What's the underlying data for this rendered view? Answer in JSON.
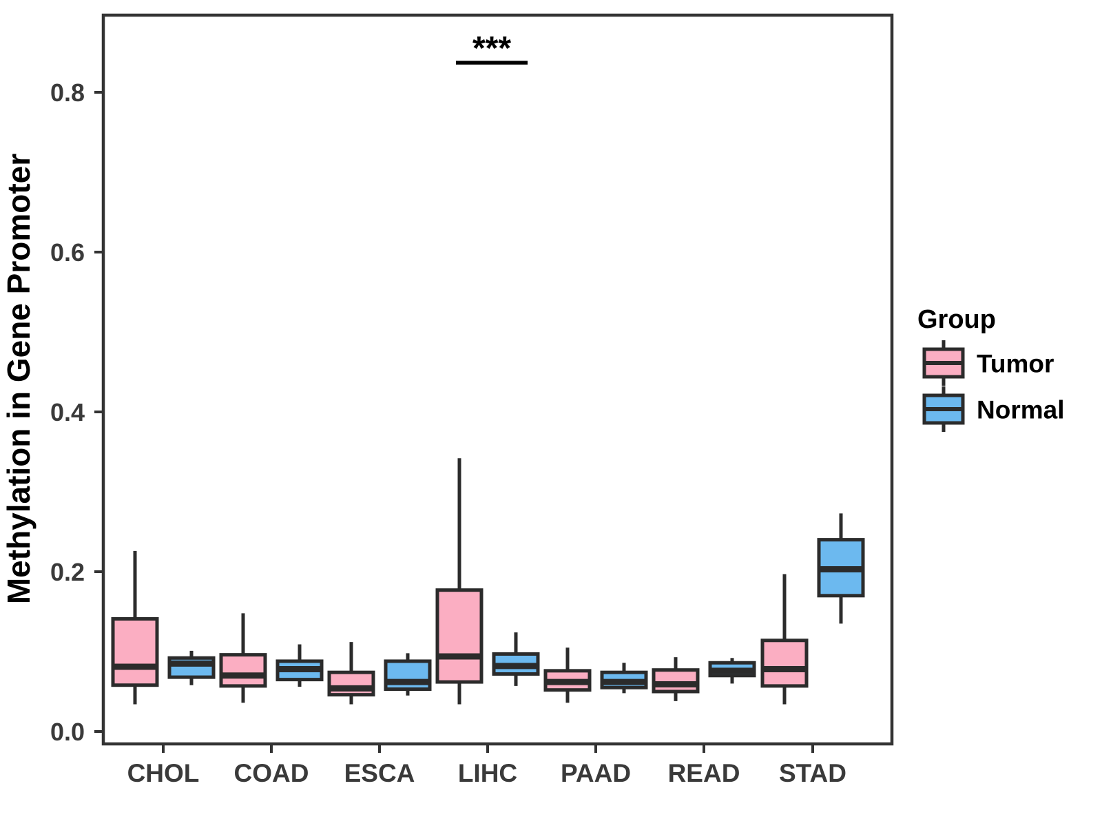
{
  "figure": {
    "background_color": "#ffffff",
    "panel_border_color": "#333333",
    "axis_text_color": "#3a3a3a",
    "y_axis": {
      "title": "Methylation in Gene Promoter",
      "tick_labels": [
        "0.0",
        "0.2",
        "0.4",
        "0.6",
        "0.8"
      ],
      "tick_values": [
        0.0,
        0.2,
        0.4,
        0.6,
        0.8
      ]
    },
    "x_axis": {
      "categories": [
        "CHOL",
        "COAD",
        "ESCA",
        "LIHC",
        "PAAD",
        "READ",
        "STAD"
      ]
    },
    "legend": {
      "title": "Group",
      "entries": [
        {
          "label": "Tumor",
          "fill": "#FBAEC2"
        },
        {
          "label": "Normal",
          "fill": "#6CB9EF"
        }
      ]
    }
  },
  "chart_data": {
    "type": "boxplot",
    "title": "",
    "xlabel": "",
    "ylabel": "Methylation in Gene Promoter",
    "ylim": [
      -0.016,
      0.9
    ],
    "grid": false,
    "legend_position": "right",
    "categories": [
      "CHOL",
      "COAD",
      "ESCA",
      "LIHC",
      "PAAD",
      "READ",
      "STAD"
    ],
    "box_outline_color": "#2b2b2b",
    "series": [
      {
        "name": "Tumor",
        "fill": "#FBAEC2",
        "boxes": [
          {
            "category": "CHOL",
            "whisker_low": 0.034,
            "q1": 0.058,
            "median": 0.081,
            "q3": 0.141,
            "whisker_high": 0.226
          },
          {
            "category": "COAD",
            "whisker_low": 0.036,
            "q1": 0.057,
            "median": 0.07,
            "q3": 0.096,
            "whisker_high": 0.148
          },
          {
            "category": "ESCA",
            "whisker_low": 0.034,
            "q1": 0.046,
            "median": 0.054,
            "q3": 0.074,
            "whisker_high": 0.112
          },
          {
            "category": "LIHC",
            "whisker_low": 0.034,
            "q1": 0.062,
            "median": 0.094,
            "q3": 0.177,
            "whisker_high": 0.342
          },
          {
            "category": "PAAD",
            "whisker_low": 0.036,
            "q1": 0.052,
            "median": 0.062,
            "q3": 0.076,
            "whisker_high": 0.105
          },
          {
            "category": "READ",
            "whisker_low": 0.038,
            "q1": 0.05,
            "median": 0.059,
            "q3": 0.077,
            "whisker_high": 0.093
          },
          {
            "category": "STAD",
            "whisker_low": 0.034,
            "q1": 0.057,
            "median": 0.078,
            "q3": 0.114,
            "whisker_high": 0.197
          }
        ]
      },
      {
        "name": "Normal",
        "fill": "#6CB9EF",
        "boxes": [
          {
            "category": "CHOL",
            "whisker_low": 0.058,
            "q1": 0.068,
            "median": 0.085,
            "q3": 0.092,
            "whisker_high": 0.101
          },
          {
            "category": "COAD",
            "whisker_low": 0.056,
            "q1": 0.065,
            "median": 0.078,
            "q3": 0.088,
            "whisker_high": 0.109
          },
          {
            "category": "ESCA",
            "whisker_low": 0.045,
            "q1": 0.053,
            "median": 0.062,
            "q3": 0.088,
            "whisker_high": 0.098
          },
          {
            "category": "LIHC",
            "whisker_low": 0.057,
            "q1": 0.072,
            "median": 0.082,
            "q3": 0.097,
            "whisker_high": 0.124
          },
          {
            "category": "PAAD",
            "whisker_low": 0.048,
            "q1": 0.055,
            "median": 0.062,
            "q3": 0.074,
            "whisker_high": 0.086
          },
          {
            "category": "READ",
            "whisker_low": 0.06,
            "q1": 0.07,
            "median": 0.076,
            "q3": 0.086,
            "whisker_high": 0.092
          },
          {
            "category": "STAD",
            "whisker_low": 0.135,
            "q1": 0.17,
            "median": 0.203,
            "q3": 0.24,
            "whisker_high": 0.273
          }
        ]
      }
    ],
    "annotations": [
      {
        "category": "LIHC",
        "label": "***",
        "kind": "significance"
      }
    ]
  }
}
